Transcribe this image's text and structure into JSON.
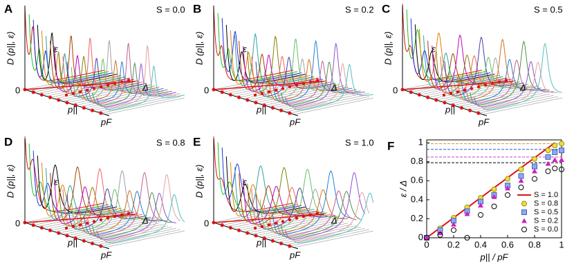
{
  "panels": [
    {
      "label": "A",
      "s_label": "S = 0.0",
      "y_axis_label": "D (p||, ε)",
      "energy_label": "ε",
      "gap_label": "Δ",
      "momentum_label": "p||",
      "fermi_label": "pF",
      "zero_label": "0"
    },
    {
      "label": "B",
      "s_label": "S = 0.2",
      "y_axis_label": "D (p||, ε)",
      "energy_label": "ε",
      "gap_label": "Δ",
      "momentum_label": "p||",
      "fermi_label": "pF",
      "zero_label": "0"
    },
    {
      "label": "C",
      "s_label": "S = 0.5",
      "y_axis_label": "D (p||, ε)",
      "energy_label": "ε",
      "gap_label": "Δ",
      "momentum_label": "p||",
      "fermi_label": "pF",
      "zero_label": "0"
    },
    {
      "label": "D",
      "s_label": "S = 0.8",
      "y_axis_label": "D (p||, ε)",
      "energy_label": "ε",
      "gap_label": "Δ",
      "momentum_label": "p||",
      "fermi_label": "pF",
      "zero_label": "0"
    },
    {
      "label": "E",
      "s_label": "S = 1.0",
      "y_axis_label": "D (p||, ε)",
      "energy_label": "ε",
      "gap_label": "Δ",
      "momentum_label": "p||",
      "fermi_label": "pF",
      "zero_label": "0"
    }
  ],
  "chart_data": {
    "type": "scatter",
    "panel_label": "F",
    "x_label": "p|| / pF",
    "y_label": "ε / Δ",
    "x": [
      0,
      0.1,
      0.2,
      0.3,
      0.4,
      0.5,
      0.6,
      0.7,
      0.8,
      0.9,
      0.95,
      1
    ],
    "series": [
      {
        "name": "S = 1.0",
        "color": "#e01010",
        "marker": "line",
        "x": [
          0,
          0.95
        ],
        "values": [
          0,
          1
        ]
      },
      {
        "name": "S = 0.8",
        "color": "#e8e040",
        "marker": "circle",
        "values": [
          0,
          0.1,
          0.21,
          0.32,
          0.42,
          0.51,
          0.62,
          0.72,
          0.83,
          0.92,
          0.97,
          0.99
        ]
      },
      {
        "name": "S = 0.5",
        "color": "#8fa8f0",
        "marker": "square",
        "values": [
          0,
          0.08,
          0.18,
          0.28,
          0.38,
          0.45,
          0.55,
          0.65,
          0.75,
          0.85,
          0.9,
          0.92
        ]
      },
      {
        "name": "S = 0.2",
        "color": "#d020c0",
        "marker": "triangle",
        "values": [
          0,
          0.05,
          0.14,
          0.25,
          0.34,
          0.43,
          0.52,
          0.6,
          0.7,
          0.78,
          0.82,
          0.82
        ]
      },
      {
        "name": "S = 0.0",
        "color": "#000000",
        "marker": "open-circle",
        "values": [
          0,
          0.03,
          0.08,
          0,
          0.24,
          0.33,
          0.45,
          0.53,
          0.62,
          0.7,
          0.73,
          0.72
        ]
      }
    ],
    "reference_lines": [
      {
        "value": 0.99,
        "color": "#c8a040"
      },
      {
        "value": 0.93,
        "color": "#3050e0"
      },
      {
        "value": 0.85,
        "color": "#c040c0"
      },
      {
        "value": 0.79,
        "color": "#000000"
      }
    ],
    "xlim": [
      0,
      1
    ],
    "ylim": [
      0,
      1.03
    ],
    "xticks": [
      0,
      0.2,
      0.4,
      0.6,
      0.8,
      1
    ],
    "yticks": [
      0,
      0.2,
      0.4,
      0.6,
      0.8,
      1
    ]
  }
}
